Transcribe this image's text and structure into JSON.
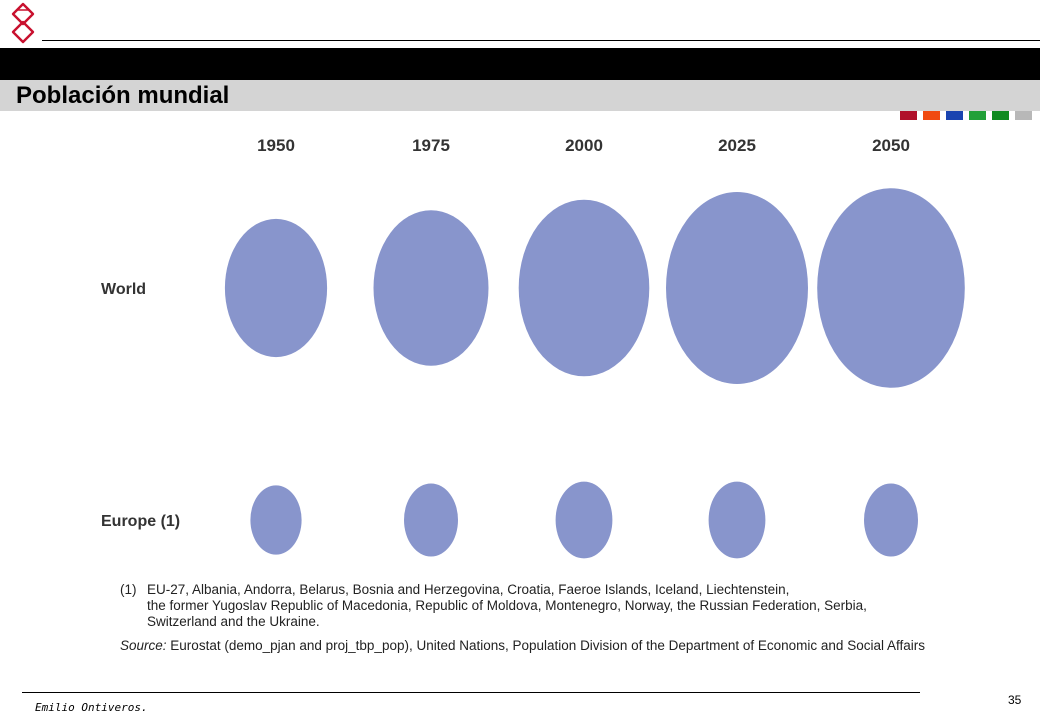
{
  "header": {
    "title": "Población mundial",
    "squares": [
      {
        "name": "square-crimson",
        "color": "#b0102a"
      },
      {
        "name": "square-orange",
        "color": "#f04a10"
      },
      {
        "name": "square-blue",
        "color": "#1a44b0"
      },
      {
        "name": "square-green",
        "color": "#22a038"
      },
      {
        "name": "square-darkgreen",
        "color": "#108a20"
      },
      {
        "name": "square-gray",
        "color": "#b8b8b8"
      }
    ],
    "logo_icon": "knot-logo-icon",
    "accent_color": "#c8102e"
  },
  "chart_data": {
    "type": "bubble",
    "categories": [
      "1950",
      "1975",
      "2000",
      "2025",
      "2050"
    ],
    "rows": [
      "World",
      "Europe (1)"
    ],
    "bubble_color": "#8895cc",
    "series": [
      {
        "name": "World",
        "relative_size": [
          0.72,
          0.81,
          0.92,
          1.0,
          1.04
        ]
      },
      {
        "name": "Europe (1)",
        "relative_size": [
          0.36,
          0.38,
          0.4,
          0.4,
          0.38
        ]
      }
    ]
  },
  "notes": {
    "footnote_num": "(1)",
    "footnote_lines": [
      "EU-27, Albania, Andorra, Belarus, Bosnia and Herzegovina, Croatia, Faeroe Islands, Iceland, Liechtenstein,",
      "the former Yugoslav Republic of Macedonia, Republic of Moldova, Montenegro, Norway, the Russian Federation, Serbia,",
      "Switzerland and the Ukraine."
    ],
    "source_label": "Source:",
    "source_text": "Eurostat (demo_pjan and proj_tbp_pop), United Nations, Population Division of the Department of Economic and Social Affairs"
  },
  "footer": {
    "author": "Emilio Ontiveros.",
    "page_number": "35"
  }
}
